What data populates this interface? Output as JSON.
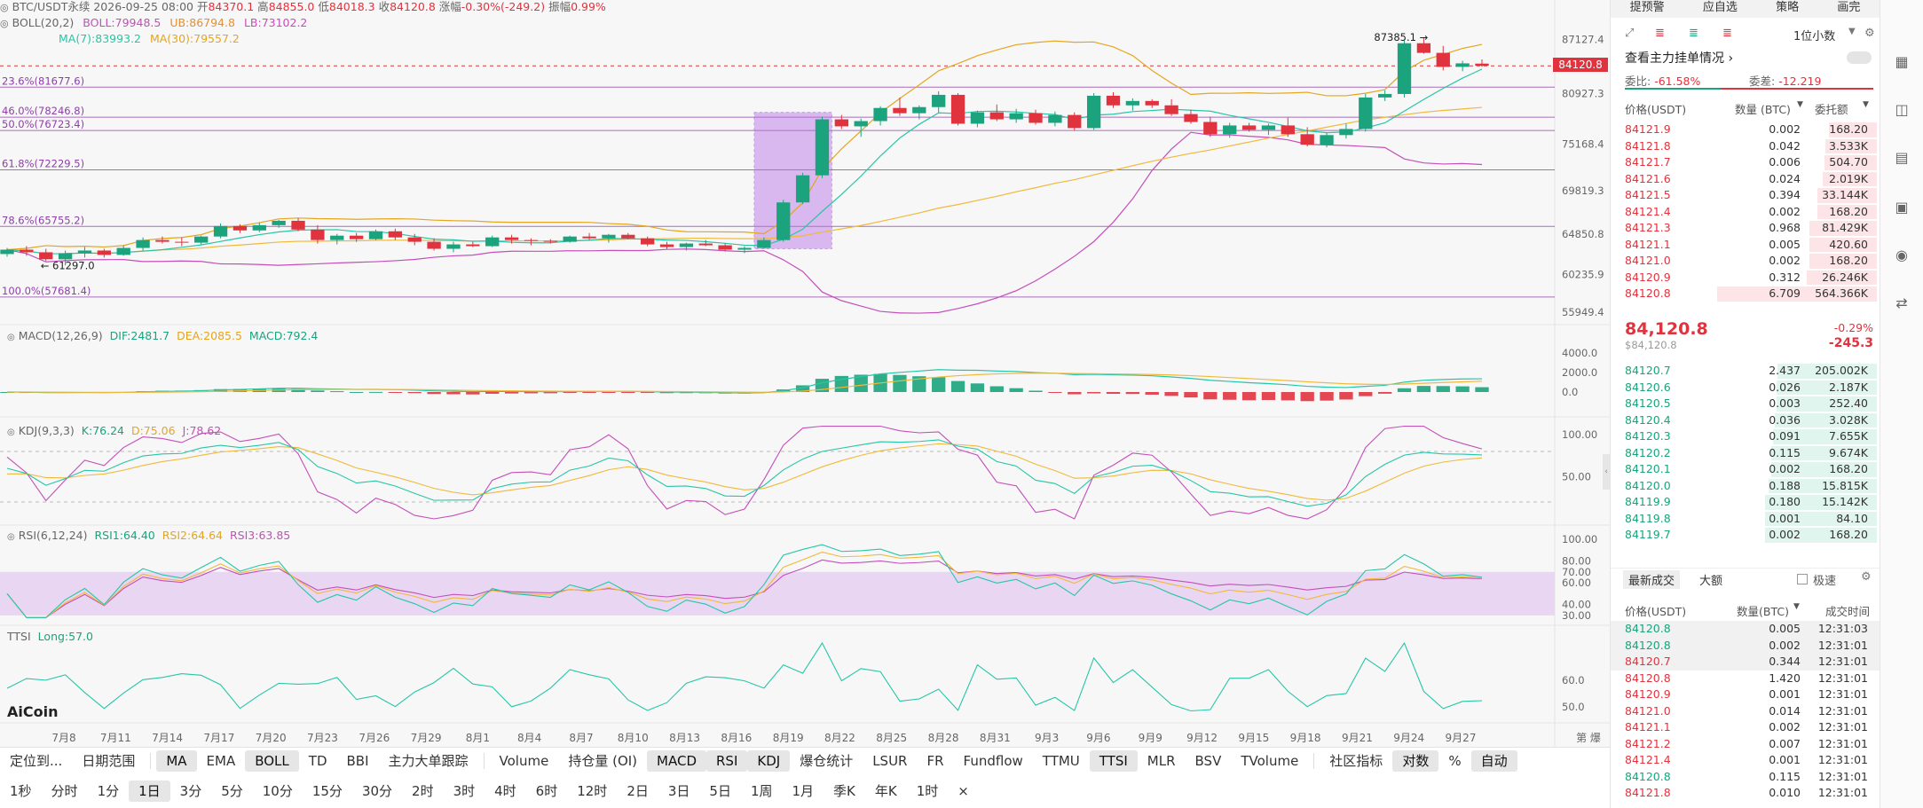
{
  "top_bar": {
    "symbol": "BTC/USDT永续",
    "datetime": "2026-09-25 08:00",
    "open_label": "开",
    "open": "84370.1",
    "high_label": "高",
    "high": "84855.0",
    "low_label": "低",
    "low": "84018.3",
    "close_label": "收",
    "close": "84120.8",
    "change_label": "涨幅",
    "change": "-0.30%(-249.2)",
    "amp_label": "振幅",
    "amp": "0.99%"
  },
  "tabs_right": [
    "提预警",
    "应自选",
    "策略",
    "画完"
  ],
  "boll": {
    "name": "BOLL(20,2)",
    "boll": "BOLL:79948.5",
    "ub": "UB:86794.8",
    "lb": "LB:73102.2"
  },
  "ma": {
    "ma7": "MA(7):83993.2",
    "ma30": "MA(30):79557.2"
  },
  "fib": [
    {
      "label": "23.6%(81677.6)",
      "price": 81677.6
    },
    {
      "label": "46.0%(78246.8)",
      "price": 78246.8
    },
    {
      "label": "50.0%(76723.4)",
      "price": 76723.4
    },
    {
      "label": "61.8%(72229.5)",
      "price": 72229.5
    },
    {
      "label": "78.6%(65755.2)",
      "price": 65755.2
    },
    {
      "label": "100.0%(57681.4)",
      "price": 57681.4
    }
  ],
  "price_axis": [
    "87127.4",
    "80927.3",
    "75168.4",
    "69819.3",
    "64850.8",
    "60235.9",
    "55949.4"
  ],
  "current_price_tag": "84120.8",
  "high_marker": "87385.1",
  "low_marker": "61297.0",
  "macd": {
    "name": "MACD(12,26,9)",
    "dif": "DIF:2481.7",
    "dea": "DEA:2085.5",
    "macd": "MACD:792.4",
    "axis": [
      "4000.0",
      "2000.0",
      "0.0"
    ]
  },
  "kdj": {
    "name": "KDJ(9,3,3)",
    "k": "K:76.24",
    "d": "D:75.06",
    "j": "J:78.62",
    "axis": [
      "100.00",
      "50.00"
    ]
  },
  "rsi": {
    "name": "RSI(6,12,24)",
    "r1": "RSI1:64.40",
    "r2": "RSI2:64.64",
    "r3": "RSI3:63.85",
    "axis": [
      "100.00",
      "80.00",
      "70.00",
      "60.00",
      "40.00",
      "30.00"
    ]
  },
  "ttsi": {
    "name": "TTSI",
    "long": "Long:57.0",
    "axis": [
      "60.0",
      "50.0"
    ]
  },
  "logo": "AiCoin",
  "x_axis": [
    "7月8",
    "7月11",
    "7月14",
    "7月17",
    "7月20",
    "7月23",
    "7月26",
    "7月29",
    "8月1",
    "8月4",
    "8月7",
    "8月10",
    "8月13",
    "8月16",
    "8月19",
    "8月22",
    "8月25",
    "8月28",
    "8月31",
    "9月3",
    "9月6",
    "9月9",
    "9月12",
    "9月15",
    "9月18",
    "9月21",
    "9月24",
    "9月27"
  ],
  "x_axis_end": "第 爆",
  "toolbar1": [
    "定位到...",
    "日期范围",
    "MA",
    "EMA",
    "BOLL",
    "TD",
    "BBI",
    "主力大单跟踪",
    "Volume",
    "持仓量 (OI)",
    "MACD",
    "RSI",
    "KDJ",
    "爆仓统计",
    "LSUR",
    "FR",
    "Fundflow",
    "TTMU",
    "TTSI",
    "MLR",
    "BSV",
    "TVolume",
    "社区指标",
    "对数",
    "%",
    "自动"
  ],
  "toolbar2": [
    "1秒",
    "分时",
    "1分",
    "1日",
    "3分",
    "5分",
    "10分",
    "15分",
    "30分",
    "2时",
    "3时",
    "4时",
    "6时",
    "12时",
    "2日",
    "3日",
    "5日",
    "1周",
    "1月",
    "季K",
    "年K",
    "1时"
  ],
  "panel": {
    "decimal": "1位小数",
    "main_order_title": "查看主力挂单情况",
    "ratio_label": "委比:",
    "ratio": "-61.58%",
    "diff_label": "委差:",
    "diff": "-12.219",
    "col_price": "价格(USDT)",
    "col_qty": "数量 (BTC)",
    "col_total": "委托额",
    "asks": [
      {
        "price": "84121.9",
        "qty": "0.002",
        "total": "168.20",
        "depth": 0.3
      },
      {
        "price": "84121.8",
        "qty": "0.042",
        "total": "3.533K",
        "depth": 0.32
      },
      {
        "price": "84121.7",
        "qty": "0.006",
        "total": "504.70",
        "depth": 0.33
      },
      {
        "price": "84121.6",
        "qty": "0.024",
        "total": "2.019K",
        "depth": 0.34
      },
      {
        "price": "84121.5",
        "qty": "0.394",
        "total": "33.144K",
        "depth": 0.37
      },
      {
        "price": "84121.4",
        "qty": "0.002",
        "total": "168.20",
        "depth": 0.37
      },
      {
        "price": "84121.3",
        "qty": "0.968",
        "total": "81.429K",
        "depth": 0.42
      },
      {
        "price": "84121.1",
        "qty": "0.005",
        "total": "420.60",
        "depth": 0.42
      },
      {
        "price": "84121.0",
        "qty": "0.002",
        "total": "168.20",
        "depth": 0.42
      },
      {
        "price": "84120.9",
        "qty": "0.312",
        "total": "26.246K",
        "depth": 0.44
      },
      {
        "price": "84120.8",
        "qty": "6.709",
        "total": "564.366K",
        "depth": 1.0
      }
    ],
    "last_price": "84,120.8",
    "last_price_usd": "$84,120.8",
    "last_change_pct": "-0.29%",
    "last_change": "-245.3",
    "bids": [
      {
        "price": "84120.7",
        "qty": "2.437",
        "total": "205.002K",
        "depth": 0.62
      },
      {
        "price": "84120.6",
        "qty": "0.026",
        "total": "2.187K",
        "depth": 0.63
      },
      {
        "price": "84120.5",
        "qty": "0.003",
        "total": "252.40",
        "depth": 0.63
      },
      {
        "price": "84120.4",
        "qty": "0.036",
        "total": "3.028K",
        "depth": 0.64
      },
      {
        "price": "84120.3",
        "qty": "0.091",
        "total": "7.655K",
        "depth": 0.65
      },
      {
        "price": "84120.2",
        "qty": "0.115",
        "total": "9.674K",
        "depth": 0.66
      },
      {
        "price": "84120.1",
        "qty": "0.002",
        "total": "168.20",
        "depth": 0.66
      },
      {
        "price": "84120.0",
        "qty": "0.188",
        "total": "15.815K",
        "depth": 0.68
      },
      {
        "price": "84119.9",
        "qty": "0.180",
        "total": "15.142K",
        "depth": 0.7
      },
      {
        "price": "84119.8",
        "qty": "0.001",
        "total": "84.10",
        "depth": 0.7
      },
      {
        "price": "84119.7",
        "qty": "0.002",
        "total": "168.20",
        "depth": 0.7
      }
    ],
    "trades_tab": "最新成交",
    "big_tab": "大额",
    "fast_label": "极速",
    "trade_col_price": "价格(USDT)",
    "trade_col_qty": "数量(BTC)",
    "trade_col_time": "成交时间",
    "trades": [
      {
        "price": "84120.8",
        "qty": "0.005",
        "time": "12:31:03",
        "side": "buy"
      },
      {
        "price": "84120.8",
        "qty": "0.002",
        "time": "12:31:01",
        "side": "buy"
      },
      {
        "price": "84120.7",
        "qty": "0.344",
        "time": "12:31:01",
        "side": "sell"
      },
      {
        "price": "84120.8",
        "qty": "1.420",
        "time": "12:31:01",
        "side": "sell"
      },
      {
        "price": "84120.9",
        "qty": "0.001",
        "time": "12:31:01",
        "side": "sell"
      },
      {
        "price": "84121.0",
        "qty": "0.014",
        "time": "12:31:01",
        "side": "sell"
      },
      {
        "price": "84121.1",
        "qty": "0.002",
        "time": "12:31:01",
        "side": "sell"
      },
      {
        "price": "84121.2",
        "qty": "0.007",
        "time": "12:31:01",
        "side": "sell"
      },
      {
        "price": "84121.4",
        "qty": "0.001",
        "time": "12:31:01",
        "side": "sell"
      },
      {
        "price": "84120.8",
        "qty": "0.115",
        "time": "12:31:01",
        "side": "buy"
      },
      {
        "price": "84121.8",
        "qty": "0.010",
        "time": "12:31:01",
        "side": "sell"
      }
    ]
  },
  "chart_data": {
    "type": "candlestick",
    "x": [
      "7月8",
      "7月11",
      "7月14",
      "7月17",
      "7月20",
      "7月23",
      "7月26",
      "7月29",
      "8月1",
      "8月4",
      "8月7",
      "8月10",
      "8月13",
      "8月16",
      "8月19",
      "8月22",
      "8月25",
      "8月28",
      "8月31",
      "9月3",
      "9月6",
      "9月9",
      "9月12",
      "9月15",
      "9月18",
      "9月21",
      "9月24"
    ],
    "ylim": [
      55949.4,
      87385.1
    ],
    "candles": [
      [
        62600,
        63300,
        62300,
        63100
      ],
      [
        63100,
        63500,
        62400,
        62800
      ],
      [
        62800,
        63200,
        61800,
        62000
      ],
      [
        62000,
        63000,
        61300,
        62700
      ],
      [
        62700,
        63400,
        62200,
        63000
      ],
      [
        63000,
        63200,
        62200,
        62500
      ],
      [
        62500,
        63600,
        62400,
        63300
      ],
      [
        63300,
        64500,
        63000,
        64200
      ],
      [
        64200,
        64600,
        63800,
        64000
      ],
      [
        64000,
        64500,
        63500,
        63900
      ],
      [
        63900,
        64700,
        63700,
        64600
      ],
      [
        64600,
        66100,
        64400,
        65800
      ],
      [
        65800,
        66000,
        65000,
        65300
      ],
      [
        65300,
        66200,
        65100,
        65900
      ],
      [
        65900,
        66500,
        65600,
        66400
      ],
      [
        66400,
        66700,
        65200,
        65400
      ],
      [
        65400,
        65900,
        63800,
        64200
      ],
      [
        64200,
        64900,
        63700,
        64700
      ],
      [
        64700,
        65000,
        64000,
        64300
      ],
      [
        64300,
        65400,
        64200,
        65200
      ],
      [
        65200,
        65500,
        64200,
        64500
      ],
      [
        64500,
        64900,
        63600,
        64000
      ],
      [
        64000,
        64400,
        63000,
        63200
      ],
      [
        63200,
        64000,
        62800,
        63700
      ],
      [
        63700,
        64000,
        63400,
        63500
      ],
      [
        63500,
        64700,
        63400,
        64500
      ],
      [
        64500,
        64800,
        63800,
        64200
      ],
      [
        64200,
        64400,
        63600,
        64100
      ],
      [
        64100,
        64300,
        63800,
        64000
      ],
      [
        64000,
        64700,
        63900,
        64600
      ],
      [
        64600,
        65000,
        64200,
        64400
      ],
      [
        64400,
        64900,
        63900,
        64800
      ],
      [
        64800,
        65000,
        64300,
        64400
      ],
      [
        64400,
        64600,
        63500,
        63700
      ],
      [
        63700,
        64000,
        63200,
        63400
      ],
      [
        63400,
        63900,
        63000,
        63800
      ],
      [
        63800,
        64200,
        63500,
        63600
      ],
      [
        63600,
        63800,
        62900,
        63100
      ],
      [
        63100,
        63500,
        62700,
        63300
      ],
      [
        63300,
        64500,
        63200,
        64200
      ],
      [
        64200,
        68800,
        64000,
        68500
      ],
      [
        68500,
        71900,
        68300,
        71600
      ],
      [
        71600,
        78300,
        71300,
        78000
      ],
      [
        78000,
        78500,
        76900,
        77200
      ],
      [
        77200,
        78100,
        76000,
        77800
      ],
      [
        77800,
        79500,
        77300,
        79300
      ],
      [
        79300,
        80500,
        78400,
        78700
      ],
      [
        78700,
        79600,
        78000,
        79400
      ],
      [
        79400,
        81200,
        78800,
        80800
      ],
      [
        80800,
        81000,
        77300,
        77500
      ],
      [
        77500,
        79000,
        77100,
        78800
      ],
      [
        78800,
        79700,
        77800,
        78000
      ],
      [
        78000,
        79200,
        77600,
        78700
      ],
      [
        78700,
        79100,
        77400,
        77600
      ],
      [
        77600,
        78900,
        77200,
        78500
      ],
      [
        78500,
        78800,
        76700,
        77000
      ],
      [
        77000,
        81000,
        76800,
        80700
      ],
      [
        80700,
        81100,
        79300,
        79600
      ],
      [
        79600,
        80400,
        79000,
        80100
      ],
      [
        80100,
        80300,
        79300,
        79600
      ],
      [
        79600,
        80300,
        78400,
        78600
      ],
      [
        78600,
        79100,
        77500,
        77700
      ],
      [
        77700,
        78300,
        76000,
        76300
      ],
      [
        76300,
        77600,
        75900,
        77300
      ],
      [
        77300,
        77600,
        76600,
        76800
      ],
      [
        76800,
        77500,
        76200,
        77300
      ],
      [
        77300,
        78200,
        76000,
        76300
      ],
      [
        76300,
        77100,
        74900,
        75100
      ],
      [
        75100,
        76500,
        74800,
        76200
      ],
      [
        76200,
        77500,
        75800,
        76900
      ],
      [
        76900,
        80900,
        76600,
        80500
      ],
      [
        80500,
        81300,
        80100,
        80900
      ],
      [
        80900,
        87000,
        80500,
        86700
      ],
      [
        86700,
        87385,
        85500,
        85600
      ],
      [
        85600,
        86400,
        83600,
        84000
      ],
      [
        84000,
        84700,
        83500,
        84400
      ],
      [
        84370,
        84855,
        84018,
        84120
      ]
    ],
    "lower_panels": [
      "MACD(12,26,9)",
      "KDJ(9,3,3)",
      "RSI(6,12,24)",
      "TTSI"
    ]
  },
  "colors": {
    "up": "#1aa37c",
    "down": "#e0333e",
    "ma7": "#26c6a6",
    "ma30": "#f0b93a",
    "boll": "#c44fb8",
    "fib": "#8e3fa8",
    "highlight": "#b56de6"
  }
}
